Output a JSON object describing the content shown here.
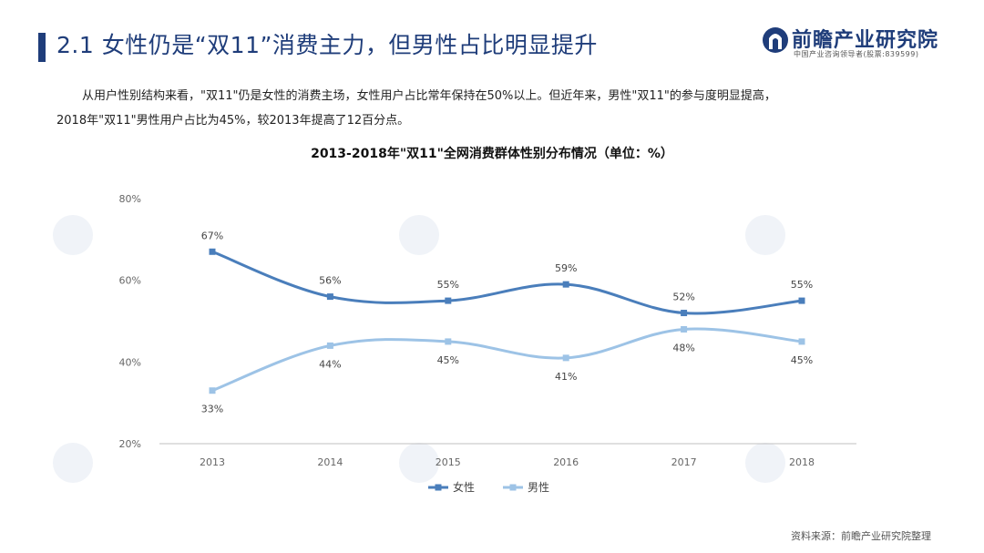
{
  "header": {
    "title": "2.1 女性仍是“双11”消费主力，但男性占比明显提升"
  },
  "logo": {
    "name": "前瞻产业研究院",
    "subtitle": "中国产业咨询领导者(股票:839599)"
  },
  "body": {
    "line1": "从用户性别结构来看，\"双11\"仍是女性的消费主场，女性用户占比常年保持在50%以上。但近年来，男性\"双11\"的参与度明显提高，",
    "line2": "2018年\"双11\"男性用户占比为45%，较2013年提高了12百分点。"
  },
  "source": "资料来源：前瞻产业研究院整理",
  "colors": {
    "title": "#1f3d7a",
    "female": "#4a7ebb",
    "male": "#9dc3e6",
    "axis": "#bfbfbf"
  },
  "chart_data": {
    "type": "line",
    "title": "2013-2018年\"双11\"全网消费群体性别分布情况（单位：%）",
    "categories": [
      "2013",
      "2014",
      "2015",
      "2016",
      "2017",
      "2018"
    ],
    "yticks": [
      "20%",
      "40%",
      "60%",
      "80%"
    ],
    "ylim": [
      20,
      80
    ],
    "grid": false,
    "legend_position": "bottom-center",
    "series": [
      {
        "name": "女性",
        "values": [
          67,
          56,
          55,
          59,
          52,
          55
        ],
        "labels": [
          "67%",
          "56%",
          "55%",
          "59%",
          "52%",
          "55%"
        ]
      },
      {
        "name": "男性",
        "values": [
          33,
          44,
          45,
          41,
          48,
          45
        ],
        "labels": [
          "33%",
          "44%",
          "45%",
          "41%",
          "48%",
          "45%"
        ]
      }
    ]
  }
}
